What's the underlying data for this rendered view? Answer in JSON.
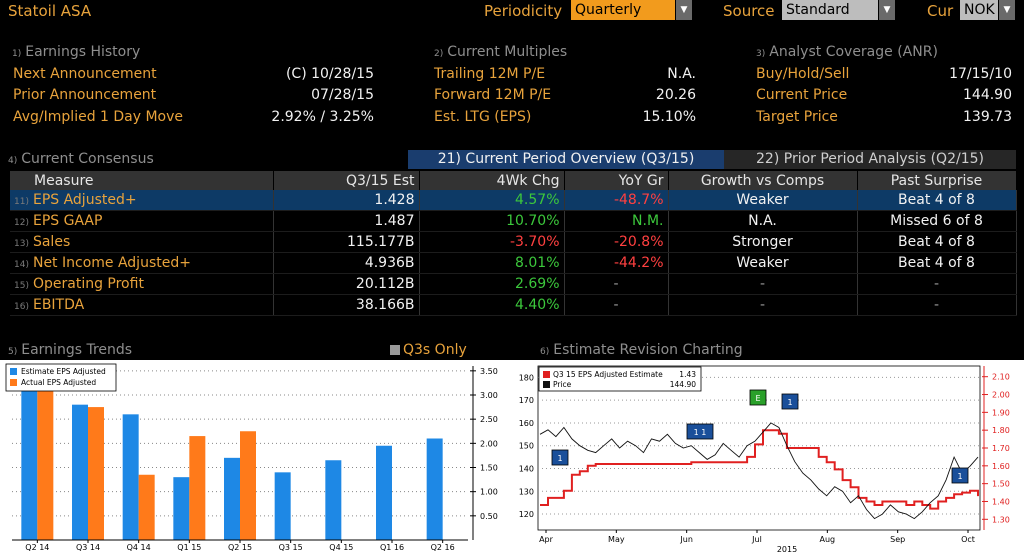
{
  "header": {
    "company": "Statoil ASA",
    "periodicity_label": "Periodicity",
    "periodicity_value": "Quarterly",
    "source_label": "Source",
    "source_value": "Standard",
    "cur_label": "Cur",
    "cur_value": "NOK"
  },
  "earnings_history": {
    "num": "1)",
    "title": "Earnings History",
    "rows": [
      {
        "label": "Next Announcement",
        "value": "(C)  10/28/15"
      },
      {
        "label": "Prior Announcement",
        "value": "07/28/15"
      },
      {
        "label": "Avg/Implied 1 Day Move",
        "value": "2.92% / 3.25%"
      }
    ]
  },
  "current_multiples": {
    "num": "2)",
    "title": "Current Multiples",
    "rows": [
      {
        "label": "Trailing 12M P/E",
        "value": "N.A."
      },
      {
        "label": "Forward 12M P/E",
        "value": "20.26"
      },
      {
        "label": "Est. LTG (EPS)",
        "value": "15.10%"
      }
    ]
  },
  "analyst_coverage": {
    "num": "3)",
    "title": "Analyst Coverage (ANR)",
    "rows": [
      {
        "label": "Buy/Hold/Sell",
        "value": "17/15/10"
      },
      {
        "label": "Current Price",
        "value": "144.90"
      },
      {
        "label": "Target Price",
        "value": "139.73"
      }
    ]
  },
  "consensus": {
    "num": "4)",
    "title": "Current Consensus",
    "tab_current": "21) Current Period Overview (Q3/15)",
    "tab_prior": "22) Prior Period Analysis (Q2/15)",
    "headers": [
      "Measure",
      "Q3/15 Est",
      "4Wk Chg",
      "YoY Gr",
      "Growth vs Comps",
      "Past Surprise"
    ],
    "rows": [
      {
        "n": "11)",
        "measure": "EPS Adjusted+",
        "est": "1.428",
        "chg": "4.57%",
        "chg_sign": "pos",
        "yoy": "-48.7%",
        "yoy_sign": "neg",
        "comps": "Weaker",
        "surprise": "Beat 4 of 8"
      },
      {
        "n": "12)",
        "measure": "EPS GAAP",
        "est": "1.487",
        "chg": "10.70%",
        "chg_sign": "pos",
        "yoy": "N.M.",
        "yoy_sign": "pos",
        "comps": "N.A.",
        "surprise": "Missed 6 of 8"
      },
      {
        "n": "13)",
        "measure": "Sales",
        "est": "115.177B",
        "chg": "-3.70%",
        "chg_sign": "neg",
        "yoy": "-20.8%",
        "yoy_sign": "neg",
        "comps": "Stronger",
        "surprise": "Beat 4 of 8"
      },
      {
        "n": "14)",
        "measure": "Net Income Adjusted+",
        "est": "4.936B",
        "chg": "8.01%",
        "chg_sign": "pos",
        "yoy": "-44.2%",
        "yoy_sign": "neg",
        "comps": "Weaker",
        "surprise": "Beat 4 of 8"
      },
      {
        "n": "15)",
        "measure": "Operating Profit",
        "est": "20.112B",
        "chg": "2.69%",
        "chg_sign": "pos",
        "yoy": "-",
        "yoy_sign": "dim",
        "comps": "-",
        "surprise": "-"
      },
      {
        "n": "16)",
        "measure": "EBITDA",
        "est": "38.166B",
        "chg": "4.40%",
        "chg_sign": "pos",
        "yoy": "-",
        "yoy_sign": "dim",
        "comps": "-",
        "surprise": "-"
      }
    ]
  },
  "earnings_trends": {
    "num": "5)",
    "title": "Earnings Trends",
    "q3_only_label": "Q3s Only"
  },
  "revision_charting": {
    "num": "6)",
    "title": "Estimate Revision Charting"
  },
  "chart_data": [
    {
      "type": "bar",
      "categories": [
        "Q2 14",
        "Q3 14",
        "Q4 14",
        "Q1 15",
        "Q2 15",
        "Q3 15",
        "Q4 15",
        "Q1 16",
        "Q2 16"
      ],
      "series": [
        {
          "name": "Estimate EPS Adjusted",
          "color": "#1e88e5",
          "values": [
            3.5,
            2.8,
            2.6,
            1.3,
            1.7,
            1.4,
            1.65,
            1.95,
            2.1
          ]
        },
        {
          "name": "Actual EPS Adjusted",
          "color": "#ff7a1a",
          "values": [
            3.5,
            2.75,
            1.35,
            2.15,
            2.25,
            null,
            null,
            null,
            null
          ]
        }
      ],
      "yticks": [
        "0.50",
        "1.00",
        "1.50",
        "2.00",
        "2.50",
        "3.00",
        "3.50"
      ],
      "ylim": [
        0,
        3.6
      ]
    },
    {
      "type": "line",
      "x_labels": [
        "Apr",
        "May",
        "Jun",
        "Jul",
        "Aug",
        "Sep",
        "Oct"
      ],
      "x_year": "2015",
      "legend": [
        {
          "name": "Q3 15 EPS Adjusted Estimate",
          "value": "1.43",
          "color": "#e02020"
        },
        {
          "name": "Price",
          "value": "144.90",
          "color": "#f2f2f2"
        }
      ],
      "left_axis": [
        "120",
        "130",
        "140",
        "150",
        "160",
        "170",
        "180"
      ],
      "right_axis": [
        "1.30",
        "1.40",
        "1.50",
        "1.60",
        "1.70",
        "1.80",
        "1.90",
        "2.00",
        "2.10"
      ],
      "left_ylim": [
        113,
        185
      ],
      "right_ylim": [
        1.24,
        2.16
      ],
      "series": [
        {
          "name": "Q3 15 EPS Adjusted Estimate",
          "axis": "right",
          "values": [
            1.38,
            1.42,
            1.42,
            1.46,
            1.55,
            1.57,
            1.6,
            1.61,
            1.61,
            1.61,
            1.61,
            1.61,
            1.61,
            1.61,
            1.61,
            1.61,
            1.61,
            1.61,
            1.61,
            1.62,
            1.62,
            1.62,
            1.62,
            1.62,
            1.62,
            1.62,
            1.65,
            1.72,
            1.8,
            1.8,
            1.78,
            1.7,
            1.7,
            1.7,
            1.7,
            1.65,
            1.62,
            1.58,
            1.52,
            1.48,
            1.42,
            1.4,
            1.38,
            1.4,
            1.4,
            1.4,
            1.38,
            1.4,
            1.38,
            1.36,
            1.4,
            1.42,
            1.44,
            1.45,
            1.46,
            1.43
          ]
        },
        {
          "name": "Price",
          "axis": "left",
          "values": [
            155,
            157,
            154,
            158,
            153,
            150,
            148,
            147,
            150,
            153,
            149,
            152,
            150,
            147,
            153,
            152,
            155,
            151,
            149,
            150,
            147,
            144,
            146,
            151,
            148,
            145,
            150,
            152,
            156,
            160,
            158,
            150,
            143,
            138,
            135,
            131,
            128,
            132,
            130,
            125,
            128,
            122,
            118,
            120,
            124,
            121,
            120,
            118,
            121,
            125,
            128,
            135,
            145,
            138,
            141,
            145
          ]
        }
      ],
      "markers": [
        {
          "label": "1",
          "color": "#1a4f9a",
          "text": "Apr"
        },
        {
          "label": "1 1",
          "color": "#1a4f9a",
          "text": "Jul"
        },
        {
          "label": "E",
          "color": "#2aa02a",
          "text": "Jul"
        },
        {
          "label": "1",
          "color": "#1a4f9a",
          "text": "Jul"
        },
        {
          "label": "1",
          "color": "#1a4f9a",
          "text": "Oct"
        }
      ]
    }
  ]
}
